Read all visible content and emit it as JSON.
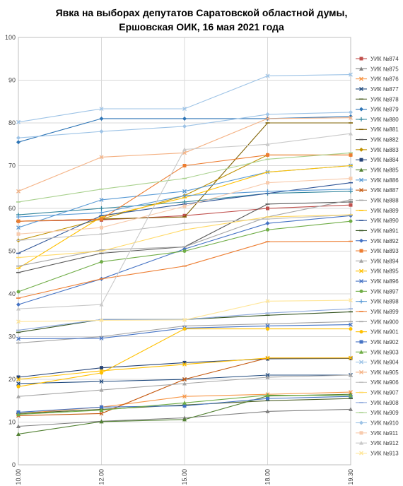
{
  "chart_data": {
    "type": "line",
    "title_lines": [
      "Явка на выборах депутатов Саратовской областной думы,",
      "Ершовская ОИК, 16 мая 2021 года"
    ],
    "x": [
      "10.00",
      "12.00",
      "15.00",
      "18.00",
      "19.30"
    ],
    "ylim": [
      0,
      100
    ],
    "yticks": [
      0,
      10,
      20,
      30,
      40,
      50,
      60,
      70,
      80,
      90,
      100
    ],
    "grid": true,
    "legend_position": "right",
    "series": [
      {
        "name": "УИК №874",
        "color": "#c0504d",
        "marker": "square",
        "values": [
          57,
          57.3,
          58.3,
          60,
          60.8
        ]
      },
      {
        "name": "УИК №875",
        "color": "#7f7f7f",
        "marker": "triangle",
        "values": [
          9,
          10.2,
          11,
          12.5,
          13
        ]
      },
      {
        "name": "УИК №876",
        "color": "#f79646",
        "marker": "x",
        "values": [
          12,
          13.5,
          16,
          16.5,
          17
        ]
      },
      {
        "name": "УИК №877",
        "color": "#1f497d",
        "marker": "x",
        "values": [
          19,
          19.5,
          20,
          21,
          21
        ]
      },
      {
        "name": "УИК №878",
        "color": "#4f6228",
        "marker": "dash",
        "values": [
          12,
          13,
          14,
          15,
          15.5
        ]
      },
      {
        "name": "УИК №879",
        "color": "#2e75b6",
        "marker": "diamond",
        "values": [
          75.5,
          81,
          81,
          81,
          81.5
        ]
      },
      {
        "name": "УИК №880",
        "color": "#31859c",
        "marker": "plus",
        "values": [
          58.5,
          60,
          61.5,
          63.5,
          64
        ]
      },
      {
        "name": "УИК №881",
        "color": "#7f6000",
        "marker": "dash",
        "values": [
          57,
          57.5,
          58,
          80,
          80
        ]
      },
      {
        "name": "УИК №882",
        "color": "#595959",
        "marker": "dash",
        "values": [
          45,
          49.5,
          51,
          61,
          61.5
        ]
      },
      {
        "name": "УИК №883",
        "color": "#bf9000",
        "marker": "diamond",
        "values": [
          52.5,
          57.5,
          63,
          72.5,
          72.5
        ]
      },
      {
        "name": "УИК №884",
        "color": "#264478",
        "marker": "square",
        "values": [
          20.5,
          22.7,
          23.9,
          24.8,
          24.9
        ]
      },
      {
        "name": "УИК №885",
        "color": "#548235",
        "marker": "triangle",
        "values": [
          7.2,
          10.1,
          10.6,
          16.1,
          16.5
        ]
      },
      {
        "name": "УИК №886",
        "color": "#5b9bd5",
        "marker": "x",
        "values": [
          55.5,
          62,
          64,
          68.5,
          70
        ]
      },
      {
        "name": "УИК №887",
        "color": "#c55a11",
        "marker": "x",
        "values": [
          11.5,
          12,
          20,
          25,
          25
        ]
      },
      {
        "name": "УИК №888",
        "color": "#a5a5a5",
        "marker": "dash",
        "values": [
          28.5,
          30,
          32.5,
          33,
          33.5
        ]
      },
      {
        "name": "УИК №889",
        "color": "#ffc000",
        "marker": "dash",
        "values": [
          46,
          58,
          62.5,
          68.5,
          70
        ]
      },
      {
        "name": "УИК №890",
        "color": "#2f5597",
        "marker": "dash",
        "values": [
          49.5,
          58.3,
          61,
          63.5,
          66
        ]
      },
      {
        "name": "УИК №891",
        "color": "#375623",
        "marker": "dash",
        "values": [
          31,
          34,
          34,
          35,
          35.8
        ]
      },
      {
        "name": "УИК №892",
        "color": "#4472c4",
        "marker": "diamond",
        "values": [
          37.5,
          43.5,
          50.5,
          56.5,
          58.3
        ]
      },
      {
        "name": "УИК №893",
        "color": "#ed7d31",
        "marker": "square",
        "values": [
          57,
          57.5,
          70,
          72.5,
          72.5
        ]
      },
      {
        "name": "УИК №894",
        "color": "#a6a6a6",
        "marker": "triangle",
        "values": [
          16,
          17.5,
          19,
          20.5,
          21
        ]
      },
      {
        "name": "УИК №895",
        "color": "#ffc000",
        "marker": "x",
        "values": [
          20,
          22,
          23.5,
          25,
          25
        ]
      },
      {
        "name": "УИК №896",
        "color": "#4472c4",
        "marker": "x",
        "values": [
          29.5,
          29.6,
          32,
          32.5,
          32.8
        ]
      },
      {
        "name": "УИК №897",
        "color": "#70ad47",
        "marker": "circle",
        "values": [
          40.5,
          47.5,
          50,
          55,
          57
        ]
      },
      {
        "name": "УИК №898",
        "color": "#5b9bd5",
        "marker": "plus",
        "values": [
          58,
          59,
          63,
          64,
          64.5
        ]
      },
      {
        "name": "УИК №899",
        "color": "#ed7d31",
        "marker": "dash",
        "values": [
          39,
          43.5,
          46.5,
          52.2,
          52.3
        ]
      },
      {
        "name": "УИК №900",
        "color": "#a5a5a5",
        "marker": "dash",
        "values": [
          46.5,
          50.3,
          51,
          58,
          62
        ]
      },
      {
        "name": "УИК №901",
        "color": "#ffc000",
        "marker": "circle",
        "values": [
          18.3,
          21.5,
          31.8,
          31.8,
          31.8
        ]
      },
      {
        "name": "УИК №902",
        "color": "#4472c4",
        "marker": "square",
        "values": [
          12.3,
          13.5,
          13.8,
          15.5,
          16
        ]
      },
      {
        "name": "УИК №903",
        "color": "#70ad47",
        "marker": "triangle",
        "values": [
          11.8,
          12.8,
          14.5,
          16.3,
          16.2
        ]
      },
      {
        "name": "УИК №904",
        "color": "#9dc3e6",
        "marker": "x",
        "values": [
          80.2,
          83.3,
          83.3,
          91,
          91.3
        ]
      },
      {
        "name": "УИК №905",
        "color": "#f4b183",
        "marker": "x",
        "values": [
          64,
          72,
          73,
          81,
          81.2
        ]
      },
      {
        "name": "УИК №906",
        "color": "#bfbfbf",
        "marker": "dash",
        "values": [
          52.5,
          54,
          56.5,
          57.5,
          58.5
        ]
      },
      {
        "name": "УИК №907",
        "color": "#ffd966",
        "marker": "dash",
        "values": [
          48.5,
          50,
          55,
          58,
          58.5
        ]
      },
      {
        "name": "УИК №908",
        "color": "#8faadc",
        "marker": "dash",
        "values": [
          31.5,
          34,
          34,
          35.5,
          36.5
        ]
      },
      {
        "name": "УИК №909",
        "color": "#a9d18e",
        "marker": "dash",
        "values": [
          61.5,
          64.5,
          67,
          71.5,
          73
        ]
      },
      {
        "name": "УИК №910",
        "color": "#9dc3e6",
        "marker": "diamond",
        "values": [
          76.5,
          78,
          79.2,
          82,
          82.5
        ]
      },
      {
        "name": "УИК №911",
        "color": "#f8cbad",
        "marker": "square",
        "values": [
          54,
          55.5,
          60.5,
          66,
          67
        ]
      },
      {
        "name": "УИК №912",
        "color": "#c9c9c9",
        "marker": "triangle",
        "values": [
          36.5,
          37.5,
          73.8,
          75,
          77.5
        ]
      },
      {
        "name": "УИК №913",
        "color": "#ffe699",
        "marker": "x",
        "values": [
          33.5,
          33.8,
          33.9,
          38.3,
          38.5
        ]
      }
    ]
  }
}
